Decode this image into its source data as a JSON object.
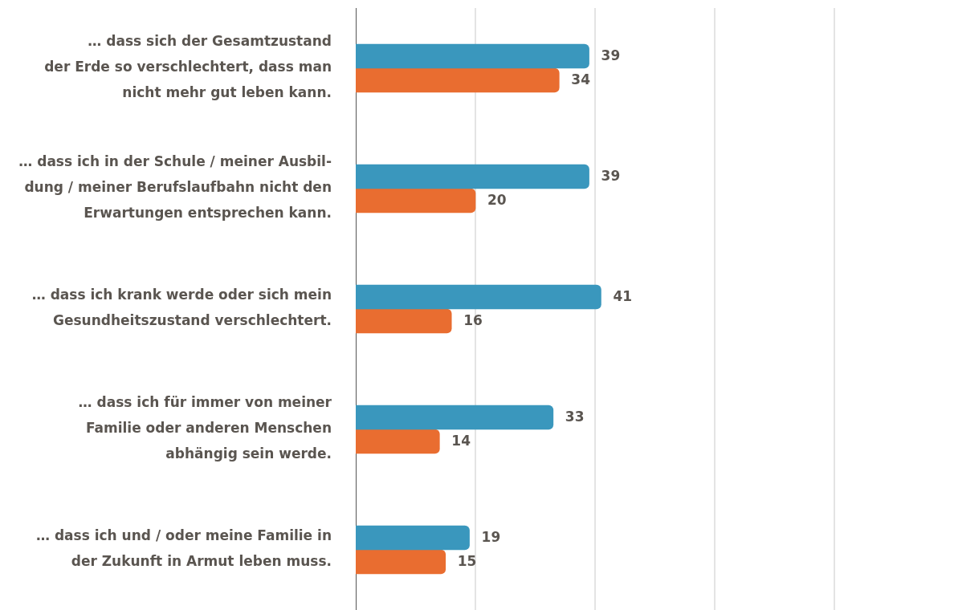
{
  "chart_data": {
    "type": "bar",
    "orientation": "horizontal",
    "categories": [
      "… dass sich der Gesamtzustand\nder Erde so verschlechtert, dass man\nnicht mehr gut leben kann.",
      "… dass ich in der Schule / meiner Ausbil-\ndung / meiner Berufslaufbahn nicht den\nErwartungen entsprechen kann.",
      "… dass ich krank werde oder sich mein\nGesundheitszustand verschlechtert.",
      "… dass ich für immer von meiner\nFamilie oder anderen Menschen\nabhängig sein werde.",
      "… dass ich und / oder meine Familie in\nder Zukunft in Armut leben muss."
    ],
    "series": [
      {
        "color": "#3a97bd",
        "values": [
          39,
          39,
          41,
          33,
          19
        ]
      },
      {
        "color": "#e96d30",
        "values": [
          34,
          20,
          16,
          14,
          15
        ]
      }
    ],
    "ref_lines": [
      {
        "axis": "x",
        "value": 20,
        "color": "#c8c8c8"
      },
      {
        "axis": "x",
        "value": 40,
        "color": "#c8c8c8"
      },
      {
        "axis": "x",
        "value": 60,
        "color": "#c8c8c8"
      },
      {
        "axis": "x",
        "value": 80,
        "color": "#c8c8c8"
      }
    ],
    "tick_labels": "y",
    "legend": false,
    "data_labels": true
  }
}
